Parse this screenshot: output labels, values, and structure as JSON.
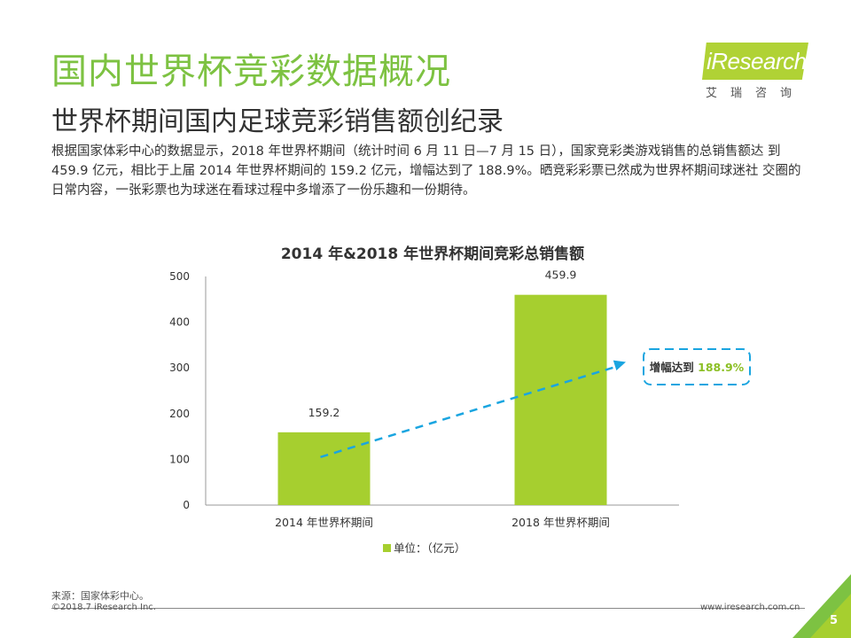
{
  "header": {
    "title": "国内世界杯竞彩数据概况",
    "subtitle": "世界杯期间国内足球竞彩销售额创纪录"
  },
  "body_text": "根据国家体彩中心的数据显示，2018 年世界杯期间（统计时间 6 月 11 日—7 月 15 日），国家竞彩类游戏销售的总销售额达 到 459.9 亿元，相比于上届 2014 年世界杯期间的 159.2 亿元，增幅达到了 188.9%。晒竞彩彩票已然成为世界杯期间球迷社 交圈的日常内容，一张彩票也为球迷在看球过程中多增添了一份乐趣和一份期待。",
  "logo": {
    "text": "iResearch",
    "cn": "艾瑞咨询"
  },
  "chart_data": {
    "type": "bar",
    "title": "2014 年&2018 年世界杯期间竞彩总销售额",
    "categories": [
      "2014 年世界杯期间",
      "2018 年世界杯期间"
    ],
    "values": [
      159.2,
      459.9
    ],
    "value_labels": [
      "159.2",
      "459.9"
    ],
    "yticks": [
      "0",
      "100",
      "200",
      "300",
      "400",
      "500"
    ],
    "ylim": [
      0,
      500
    ],
    "legend": "单位：（亿元）",
    "legend_position": "bottom",
    "annotation_prefix": "增幅达到 ",
    "annotation_value": "188.9%",
    "bar_color": "#a6cf2f",
    "arrow_color": "#1aa5e0"
  },
  "footer": {
    "source": "来源：国家体彩中心。",
    "copyright": "©2018.7 iResearch Inc.",
    "website": "www.iresearch.com.cn",
    "page_number": "5"
  }
}
